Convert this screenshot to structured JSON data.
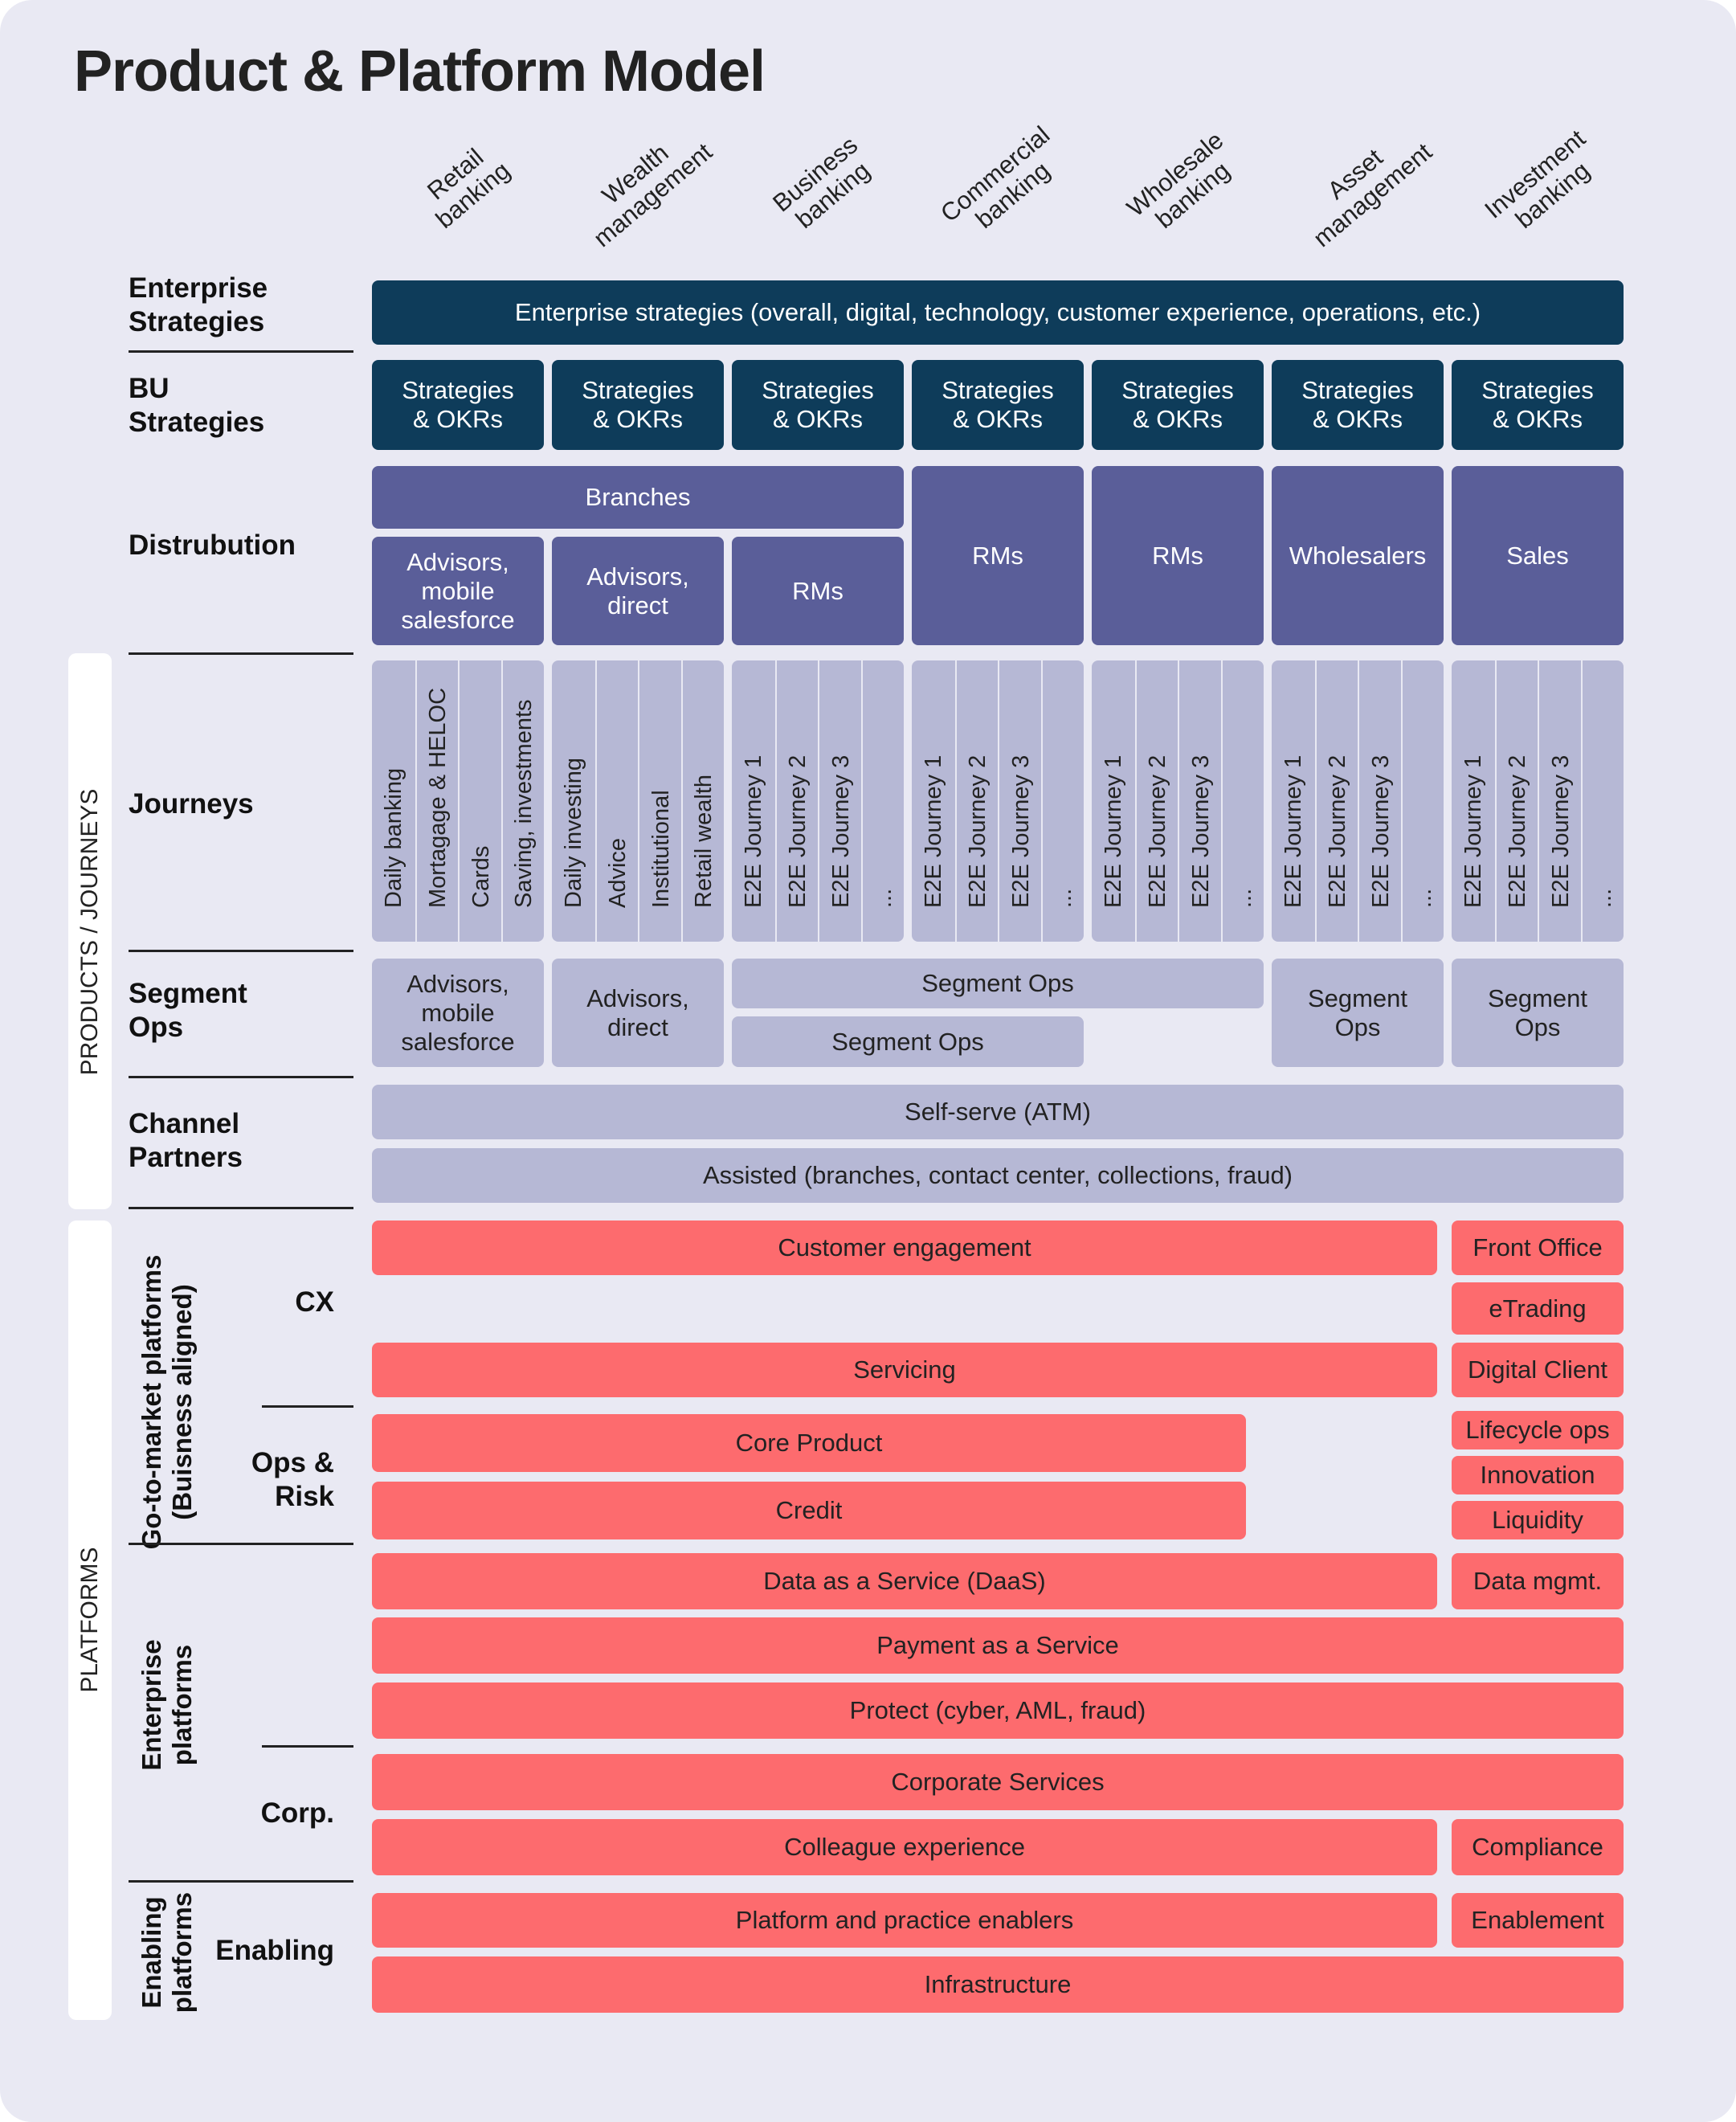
{
  "title": "Product & Platform Model",
  "columns": [
    "Retail banking",
    "Wealth management",
    "Business banking",
    "Commercial banking",
    "Wholesale banking",
    "Asset management",
    "Investment banking"
  ],
  "column_lines": [
    [
      "Retail",
      "banking"
    ],
    [
      "Wealth",
      "management"
    ],
    [
      "Business",
      "banking"
    ],
    [
      "Commercial",
      "banking"
    ],
    [
      "Wholesale",
      "banking"
    ],
    [
      "Asset",
      "management"
    ],
    [
      "Investment",
      "banking"
    ]
  ],
  "rows": {
    "enterprise_strategies": {
      "label": [
        "Enterprise",
        "Strategies"
      ],
      "content": "Enterprise strategies (overall, digital, technology, customer experience, operations, etc.)"
    },
    "bu_strategies": {
      "label": [
        "BU",
        "Strategies"
      ],
      "cell": [
        "Strategies",
        "& OKRs"
      ]
    },
    "distribution": {
      "label": "Distrubution",
      "branches": "Branches",
      "retail": [
        "Advisors,",
        "mobile",
        "salesforce"
      ],
      "wealth": [
        "Advisors,",
        "direct"
      ],
      "business": "RMs",
      "commercial": "RMs",
      "wholesale": "RMs",
      "asset": "Wholesalers",
      "investment": "Sales"
    },
    "journeys": {
      "label": "Journeys",
      "retail": [
        "Daily banking",
        "Mortagage & HELOC",
        "Cards",
        "Saving, investments"
      ],
      "wealth": [
        "Daily investing",
        "Advice",
        "Institutional",
        "Retail wealth"
      ],
      "generic": [
        "E2E Journey 1",
        "E2E Journey 2",
        "E2E Journey 3",
        "..."
      ]
    },
    "segment_ops": {
      "label": [
        "Segment",
        "Ops"
      ],
      "retail": [
        "Advisors,",
        "mobile",
        "salesforce"
      ],
      "wealth": [
        "Advisors,",
        "direct"
      ],
      "span_top": "Segment Ops",
      "span_bottom": "Segment Ops",
      "asset": [
        "Segment",
        "Ops"
      ],
      "investment": [
        "Segment",
        "Ops"
      ]
    },
    "channel_partners": {
      "label": [
        "Channel",
        "Partners"
      ],
      "self_serve": "Self-serve (ATM)",
      "assisted": "Assisted (branches, contact center, collections, fraud)"
    }
  },
  "side_labels": {
    "products": "PRODUCTS / JOURNEYS",
    "platforms": "PLATFORMS"
  },
  "platform_groups": {
    "go_to_market": [
      "Go-to-market platforms",
      "(Buisness aligned)"
    ],
    "enterprise": [
      "Enterprise",
      "platforms"
    ],
    "enabling": [
      "Enabling",
      "platforms"
    ]
  },
  "sub_labels": {
    "cx": "CX",
    "ops_risk": [
      "Ops &",
      "Risk"
    ],
    "corp": "Corp.",
    "enabling": "Enabling"
  },
  "platforms": {
    "customer_engagement": "Customer engagement",
    "servicing": "Servicing",
    "core_product": "Core Product",
    "credit": "Credit",
    "daas": "Data as a Service (DaaS)",
    "payment": "Payment as a Service",
    "protect": "Protect (cyber, AML, fraud)",
    "corporate_services": "Corporate Services",
    "colleague_experience": "Colleague experience",
    "platform_enablers": "Platform and practice enablers",
    "infrastructure": "Infrastructure",
    "front_office": "Front Office",
    "etrading": "eTrading",
    "digital_client": "Digital Client",
    "lifecycle_ops": "Lifecycle ops",
    "innovation": "Innovation",
    "liquidity": "Liquidity",
    "data_mgmt": "Data mgmt.",
    "compliance": "Compliance",
    "enablement": "Enablement"
  },
  "colors": {
    "dark": "#0e3c5a",
    "purple": "#5a5e99",
    "lavender": "#b6b8d5",
    "red": "#fd6b6e",
    "background": "#e9e9f3"
  }
}
